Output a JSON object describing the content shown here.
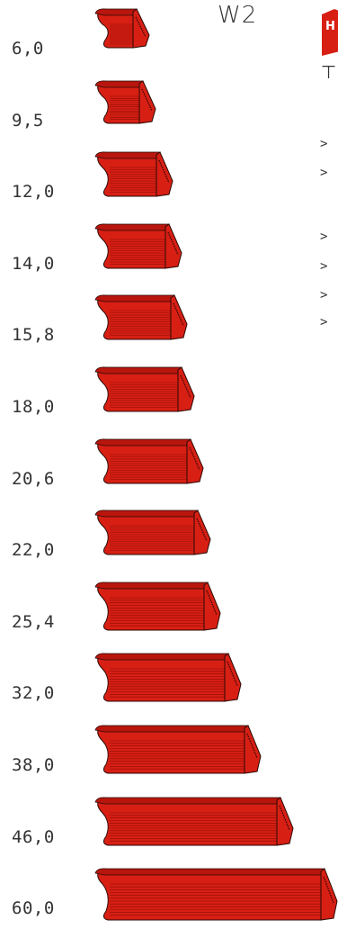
{
  "header": {
    "title": "W2",
    "brand_letter": "H",
    "side_glyph": "⊢"
  },
  "side_arrows": [
    ">",
    ">",
    ">",
    ">",
    ">",
    ">"
  ],
  "colors": {
    "profile_fill": "#d81f14",
    "profile_dark": "#b8160d",
    "profile_line": "#8a0c05",
    "outline": "#2a0a05"
  },
  "profiles": [
    {
      "label": "6,0"
    },
    {
      "label": "9,5"
    },
    {
      "label": "12,0"
    },
    {
      "label": "14,0"
    },
    {
      "label": "15,8"
    },
    {
      "label": "18,0"
    },
    {
      "label": "20,6"
    },
    {
      "label": "22,0"
    },
    {
      "label": "25,4"
    },
    {
      "label": "32,0"
    },
    {
      "label": "38,0"
    },
    {
      "label": "46,0"
    },
    {
      "label": "60,0"
    }
  ]
}
